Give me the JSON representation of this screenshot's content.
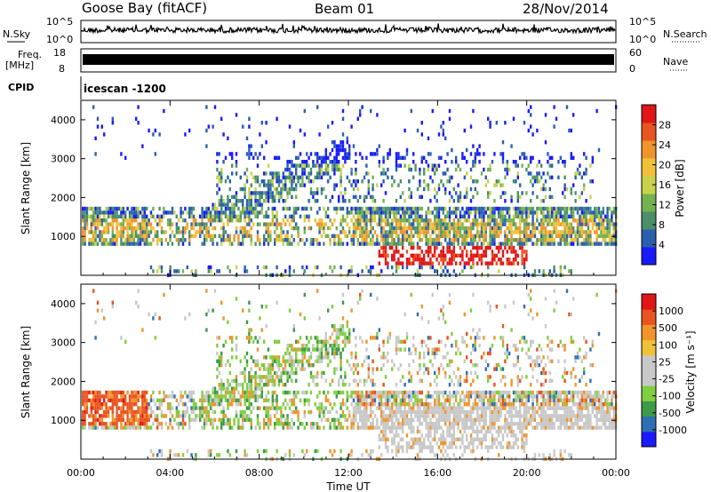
{
  "header": {
    "station": "Goose Bay (fitACF)",
    "beam": "Beam 01",
    "date": "28/Nov/2014"
  },
  "summary_panels": {
    "nsky_label": "N.Sky",
    "nsky_ticks": [
      "10^5",
      "10^0"
    ],
    "nsearch_label": "N.Search",
    "nsearch_ticks": [
      "10^5",
      "10^0"
    ],
    "freq_label": "Freq.",
    "freq_unit": "[MHz]",
    "freq_ticks": [
      "18",
      "8"
    ],
    "nave_label": "Nave",
    "nave_ticks": [
      "60",
      "0"
    ],
    "cpid_label": "CPID",
    "cpid_value": "icescan -1200"
  },
  "chart_data": [
    {
      "type": "heatmap",
      "name": "power-panel",
      "ylabel": "Slant Range [km]",
      "ylim": [
        0,
        4500
      ],
      "yticks": [
        "1000",
        "2000",
        "3000",
        "4000"
      ],
      "xlim_hours": [
        0,
        24
      ],
      "colorbar_label": "Power [dB]",
      "colorbar_ticks": [
        "28",
        "24",
        "20",
        "16",
        "12",
        "8",
        "4"
      ],
      "colorbar_colors": [
        "#1a1aff",
        "#2a5fb0",
        "#4b8f6a",
        "#73b34f",
        "#c8d24a",
        "#f2c13a",
        "#f0952b",
        "#e9541f",
        "#e11616"
      ],
      "features": [
        {
          "desc": "main band",
          "t_range": [
            0,
            24
          ],
          "range_km": [
            900,
            1800
          ]
        },
        {
          "desc": "strong echoes",
          "t_range": [
            13.5,
            20
          ],
          "range_km": [
            400,
            800
          ]
        },
        {
          "desc": "diffuse scatter",
          "t_range": [
            6,
            22
          ],
          "range_km": [
            2000,
            3200
          ]
        }
      ]
    },
    {
      "type": "heatmap",
      "name": "velocity-panel",
      "ylabel": "Slant Range [km]",
      "ylim": [
        0,
        4500
      ],
      "yticks": [
        "1000",
        "2000",
        "3000",
        "4000"
      ],
      "xlim_hours": [
        0,
        24
      ],
      "xticks": [
        "00:00",
        "04:00",
        "08:00",
        "12:00",
        "16:00",
        "20:00",
        "00:00"
      ],
      "xlabel": "Time UT",
      "colorbar_label": "Velocity [m s⁻¹]",
      "colorbar_ticks": [
        "1000",
        "500",
        "100",
        "25",
        "-25",
        "-100",
        "-500",
        "-1000"
      ],
      "colorbar_colors": [
        "#1a1aff",
        "#2f6fb3",
        "#3d9a48",
        "#7fcf3f",
        "#c8c8c8",
        "#c8c8c8",
        "#f2c13a",
        "#f0952b",
        "#e9541f",
        "#e11616"
      ]
    }
  ]
}
